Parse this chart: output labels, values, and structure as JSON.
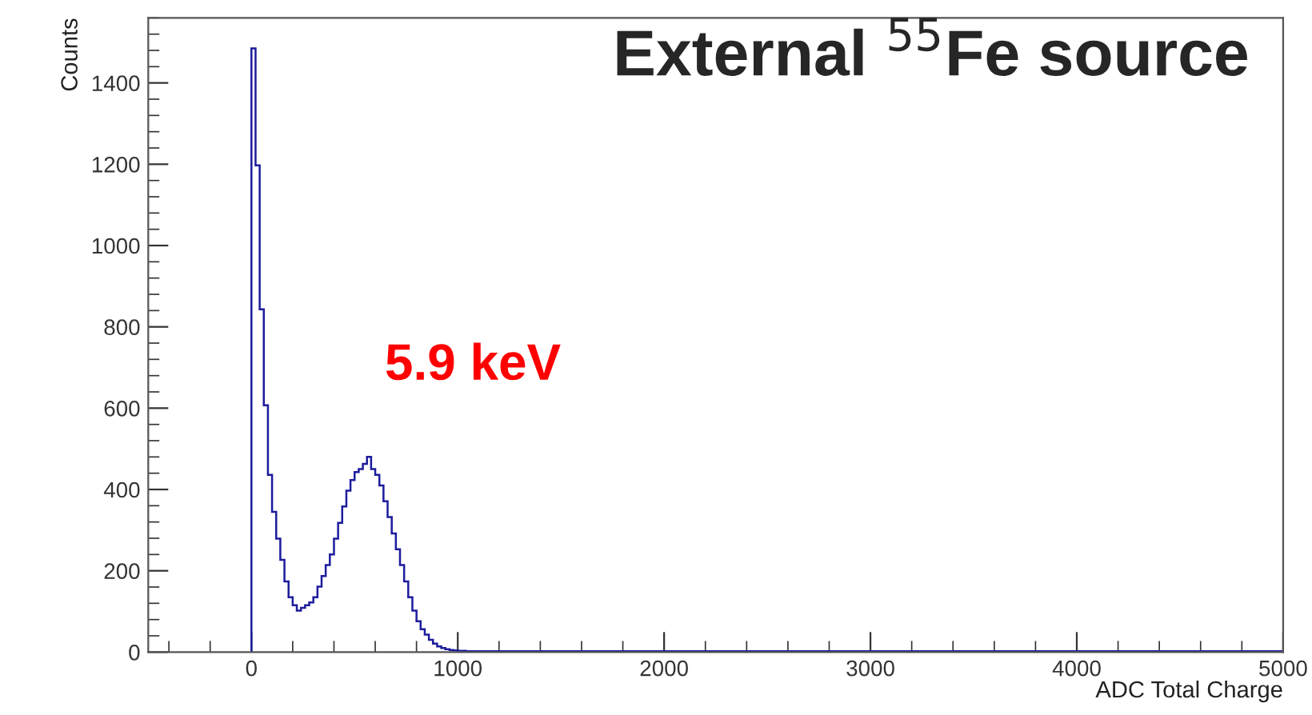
{
  "chart_data": {
    "type": "histogram",
    "title": "External $^{55}$Fe source",
    "xlabel": "ADC Total Charge",
    "ylabel": "Counts",
    "bins": [
      0,
      20,
      40,
      60,
      80,
      100,
      120,
      140,
      160,
      180,
      200,
      220,
      240,
      260,
      280,
      300,
      320,
      340,
      360,
      380,
      400,
      420,
      440,
      460,
      480,
      500,
      520,
      540,
      560,
      580,
      600,
      620,
      640,
      660,
      680,
      700,
      720,
      740,
      760,
      780,
      800,
      820,
      840,
      860,
      880,
      900,
      920,
      940,
      960,
      980,
      1000,
      1020,
      1040,
      1060,
      1080,
      1100,
      1120,
      1140,
      1160,
      1180,
      1200,
      5000
    ],
    "values": [
      1485,
      1197,
      843,
      607,
      436,
      345,
      279,
      227,
      174,
      135,
      115,
      102,
      109,
      115,
      122,
      135,
      161,
      187,
      214,
      240,
      279,
      318,
      358,
      397,
      423,
      443,
      450,
      463,
      480,
      450,
      436,
      410,
      371,
      332,
      292,
      253,
      214,
      174,
      135,
      102,
      76,
      56,
      43,
      30,
      21,
      14,
      10,
      7,
      5,
      4,
      3,
      3,
      2,
      2,
      2,
      2,
      2,
      2,
      2,
      2,
      2
    ],
    "color": "#1c1c9c",
    "annotations": [
      {
        "text": "5.9 keV",
        "x": 560,
        "y": 480
      }
    ],
    "xlim": [
      -500,
      5000
    ],
    "ylim": [
      0,
      1560
    ],
    "xticks": [
      0,
      1000,
      2000,
      3000,
      4000,
      5000
    ],
    "yticks": [
      0,
      200,
      400,
      600,
      800,
      1000,
      1200,
      1400
    ],
    "grid": false,
    "legend": false
  }
}
